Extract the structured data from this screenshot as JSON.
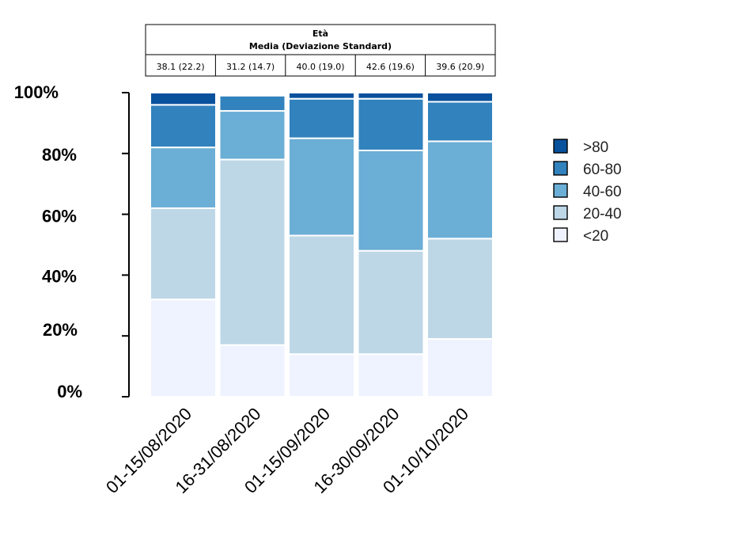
{
  "table": {
    "header_line1": "Età",
    "header_line2": "Media (Deviazione Standard)",
    "cells": [
      "38.1 (22.2)",
      "31.2 (14.7)",
      "40.0 (19.0)",
      "42.6 (19.6)",
      "39.6 (20.9)"
    ]
  },
  "chart_data": {
    "type": "bar",
    "stacked": true,
    "categories": [
      "01-15/08/2020",
      "16-31/08/2020",
      "01-15/09/2020",
      "16-30/09/2020",
      "01-10/10/2020"
    ],
    "series": [
      {
        "name": "<20",
        "color": "#eff3ff",
        "values": [
          32,
          17,
          14,
          14,
          19
        ]
      },
      {
        "name": "20-40",
        "color": "#bdd7e7",
        "values": [
          30,
          61,
          39,
          34,
          33
        ]
      },
      {
        "name": "40-60",
        "color": "#6baed6",
        "values": [
          20,
          16,
          32,
          33,
          32
        ]
      },
      {
        "name": "60-80",
        "color": "#3182bd",
        "values": [
          14,
          5,
          13,
          17,
          13
        ]
      },
      {
        "name": ">80",
        "color": "#08519c",
        "values": [
          4,
          0,
          2,
          2,
          3
        ]
      }
    ],
    "ylim": [
      0,
      100
    ],
    "yticks": [
      "0%",
      "20%",
      "40%",
      "60%",
      "80%",
      "100%"
    ],
    "legend_order": [
      ">80",
      "60-80",
      "40-60",
      "20-40",
      "<20"
    ],
    "legend_position": "right",
    "grid": false
  }
}
